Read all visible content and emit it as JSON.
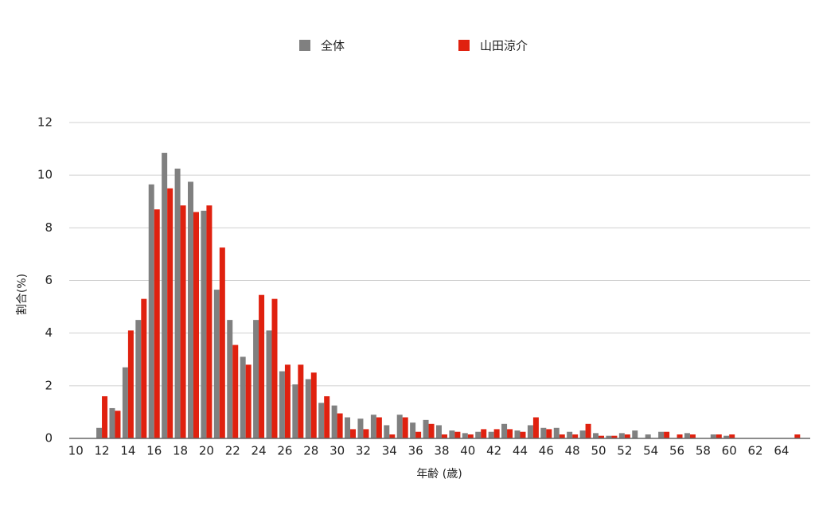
{
  "chart_data": {
    "type": "bar",
    "x_label": "年齢 (歳)",
    "y_label": "割合(%)",
    "categories": [
      "10",
      null,
      "12",
      null,
      "14",
      null,
      "16",
      null,
      "18",
      null,
      "20",
      null,
      "22",
      null,
      "24",
      null,
      "26",
      null,
      "28",
      null,
      "30",
      null,
      "32",
      null,
      "34",
      null,
      "36",
      null,
      "38",
      null,
      "40",
      null,
      "42",
      null,
      "44",
      null,
      "46",
      null,
      "48",
      null,
      "50",
      null,
      "52",
      null,
      "54",
      null,
      "56",
      null,
      "58",
      null,
      "60",
      null,
      "62",
      null,
      "64",
      null
    ],
    "series": [
      {
        "name": "全体",
        "color": "#808080",
        "values": [
          0,
          0,
          0.4,
          1.15,
          2.7,
          4.5,
          9.65,
          10.85,
          10.25,
          9.75,
          8.65,
          5.65,
          4.5,
          3.1,
          4.5,
          4.1,
          2.55,
          2.05,
          2.25,
          1.35,
          1.25,
          0.8,
          0.75,
          0.9,
          0.5,
          0.9,
          0.6,
          0.7,
          0.5,
          0.3,
          0.2,
          0.25,
          0.25,
          0.55,
          0.3,
          0.5,
          0.4,
          0.4,
          0.25,
          0.3,
          0.2,
          0.1,
          0.2,
          0.3,
          0.15,
          0.25,
          0,
          0.2,
          0,
          0.15,
          0.1,
          0,
          0,
          0,
          0,
          0
        ]
      },
      {
        "name": "山田涼介",
        "color": "#e0210f",
        "values": [
          0,
          0,
          1.6,
          1.05,
          4.1,
          5.3,
          8.7,
          9.5,
          8.85,
          8.6,
          8.85,
          7.25,
          3.55,
          2.8,
          5.45,
          5.3,
          2.8,
          2.8,
          2.5,
          1.6,
          0.95,
          0.35,
          0.35,
          0.8,
          0.15,
          0.8,
          0.25,
          0.55,
          0.15,
          0.25,
          0.15,
          0.35,
          0.35,
          0.35,
          0.25,
          0.8,
          0.35,
          0.15,
          0.15,
          0.55,
          0.1,
          0.1,
          0.15,
          0,
          0,
          0.25,
          0.15,
          0.15,
          0,
          0.15,
          0.15,
          0,
          0,
          0,
          0,
          0.15
        ]
      }
    ],
    "ylim": [
      0,
      12
    ],
    "yticks": [
      0,
      2,
      4,
      6,
      8,
      10,
      12
    ],
    "grid": true,
    "legend": "top"
  }
}
